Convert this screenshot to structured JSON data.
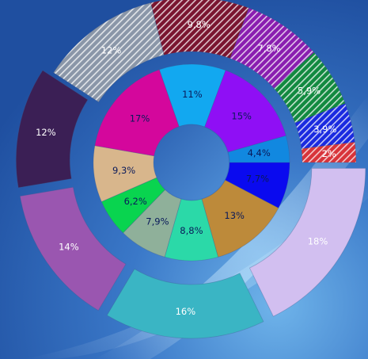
{
  "chart_data": {
    "type": "sunburst",
    "title": "",
    "rings": [
      {
        "name": "inner",
        "start_angle_deg": 0,
        "slices": [
          {
            "label": "7,7%",
            "value": 7.7,
            "color": "#0a0aef",
            "label_color": "#0a1a5a"
          },
          {
            "label": "13%",
            "value": 13,
            "color": "#bd8a3a",
            "label_color": "#0a1a5a"
          },
          {
            "label": "8,8%",
            "value": 8.8,
            "color": "#2bd9a8",
            "label_color": "#0a1a5a"
          },
          {
            "label": "7,9%",
            "value": 7.9,
            "color": "#8fb09a",
            "label_color": "#0a1a5a"
          },
          {
            "label": "6,2%",
            "value": 6.2,
            "color": "#09d44f",
            "label_color": "#0a1a5a"
          },
          {
            "label": "9,3%",
            "value": 9.3,
            "color": "#d8b68c",
            "label_color": "#0a1a5a"
          },
          {
            "label": "17%",
            "value": 17,
            "color": "#d4079c",
            "label_color": "#0a1a5a"
          },
          {
            "label": "11%",
            "value": 11,
            "color": "#12a8f0",
            "label_color": "#0a1a5a"
          },
          {
            "label": "15%",
            "value": 15,
            "color": "#8f0ff5",
            "label_color": "#0a1a5a"
          },
          {
            "label": "4,4%",
            "value": 4.4,
            "color": "#1188e0",
            "label_color": "#0a1a5a"
          }
        ]
      },
      {
        "name": "outer",
        "start_angle_deg": 0,
        "slices": [
          {
            "label": "18%",
            "value": 18,
            "color": "#d2bff0",
            "label_color": "#ffffff",
            "pattern": "none"
          },
          {
            "label": "16%",
            "value": 16,
            "color": "#3ab5c4",
            "label_color": "#ffffff",
            "pattern": "none"
          },
          {
            "label": "14%",
            "value": 14,
            "color": "#9a56b0",
            "label_color": "#ffffff",
            "pattern": "none"
          },
          {
            "label": "12%",
            "value": 12,
            "color": "#3b1f55",
            "label_color": "#ffffff",
            "pattern": "none"
          },
          {
            "label": "12%",
            "value": 12,
            "color": "#8a96a8",
            "label_color": "#ffffff",
            "pattern": "diagonal"
          },
          {
            "label": "9,8%",
            "value": 9.8,
            "color": "#7a1530",
            "label_color": "#ffffff",
            "pattern": "diagonal"
          },
          {
            "label": "7,8%",
            "value": 7.8,
            "color": "#8a1eb0",
            "label_color": "#ffffff",
            "pattern": "diagonal"
          },
          {
            "label": "5,9%",
            "value": 5.9,
            "color": "#128a40",
            "label_color": "#ffffff",
            "pattern": "diagonal"
          },
          {
            "label": "3,9%",
            "value": 3.9,
            "color": "#1a2ae0",
            "label_color": "#ffffff",
            "pattern": "diagonal"
          },
          {
            "label": "2%",
            "value": 2,
            "color": "#d8343a",
            "label_color": "#ffffff",
            "pattern": "diagonal"
          }
        ]
      }
    ],
    "legend": "none",
    "grid": false
  }
}
